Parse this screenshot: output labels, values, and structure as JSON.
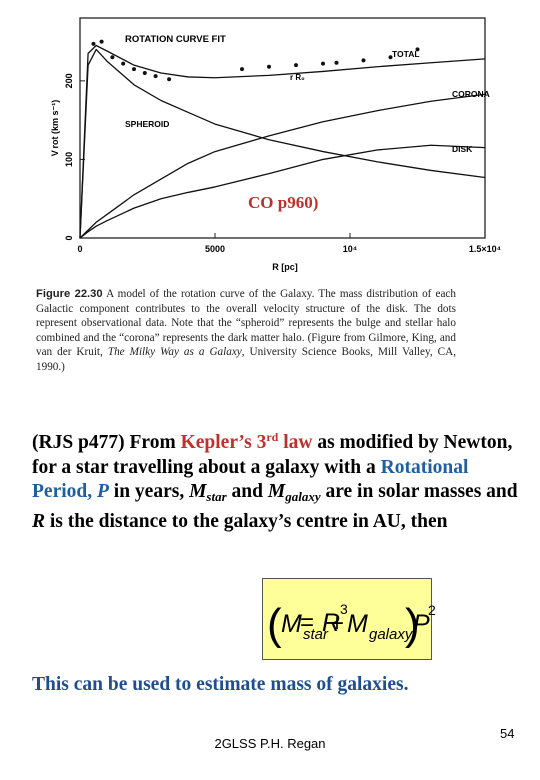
{
  "chart_data": {
    "type": "line",
    "title": "ROTATION CURVE FIT",
    "x_label": "R [pc]",
    "y_label": "V rot (km s⁻¹)",
    "annotation": "r R₀",
    "x": [
      0,
      300,
      600,
      1000,
      2000,
      3000,
      4000,
      5000,
      7000,
      9000,
      11000,
      13000,
      15000
    ],
    "series": [
      {
        "name": "TOTAL",
        "color": "#111",
        "values": [
          0,
          235,
          245,
          238,
          220,
          210,
          205,
          204,
          207,
          212,
          218,
          223,
          228
        ]
      },
      {
        "name": "CORONA",
        "color": "#111",
        "values": [
          0,
          10,
          20,
          30,
          55,
          75,
          95,
          110,
          130,
          148,
          162,
          174,
          183
        ]
      },
      {
        "name": "SPHEROID",
        "color": "#111",
        "values": [
          0,
          220,
          240,
          225,
          195,
          175,
          160,
          145,
          125,
          110,
          97,
          86,
          77
        ]
      },
      {
        "name": "DISK",
        "color": "#111",
        "values": [
          0,
          8,
          15,
          22,
          38,
          50,
          58,
          65,
          82,
          100,
          112,
          118,
          115
        ]
      }
    ],
    "points": {
      "x": [
        500,
        800,
        1200,
        1600,
        2000,
        2400,
        2800,
        3300,
        6000,
        7000,
        8000,
        9000,
        9500,
        10500,
        11500,
        12500
      ],
      "values": [
        247,
        250,
        230,
        222,
        215,
        210,
        206,
        202,
        215,
        218,
        220,
        222,
        223,
        226,
        230,
        240
      ]
    },
    "xlim": [
      0,
      15000
    ],
    "ylim": [
      0,
      280
    ],
    "xticks": [
      0,
      5000,
      {
        "value": 10000,
        "label": "10⁴"
      },
      {
        "value": 15000,
        "label": "1.5×10⁴"
      }
    ],
    "yticks": [
      0,
      100,
      200
    ]
  },
  "overlay": "CO p960)",
  "caption": [
    "Figure 22.30",
    " A model of the rotation curve of the Galaxy. The mass distribution of each Galactic component contributes to the overall velocity structure of the disk. The dots represent observational data. Note that the “spheroid” represents the bulge and stellar halo combined and the “corona” represents the dark matter halo. (Figure from Gilmore, King, and van der Kruit, ",
    "The Milky Way as a Galaxy",
    ", University Science Books, Mill Valley, CA, 1990.)"
  ],
  "body": [
    "(RJS p477) From ",
    "Kepler’s 3",
    "rd",
    " law",
    " as modified by Newton, for a star travelling about a galaxy with a ",
    "Rotational Period, ",
    "P",
    " in years, ",
    "M",
    "star",
    " and ",
    "M",
    "galaxy",
    " are in solar masses and ",
    "R",
    " is the distance to the galaxy’s centre in AU, then"
  ],
  "formula": [
    "(",
    "M",
    "star",
    "+",
    "M",
    "galaxy",
    ")",
    "P",
    "2",
    "=",
    "R",
    "3"
  ],
  "conclusion": "This can be used to estimate mass of galaxies.",
  "footer": "2GLSS P.H. Regan",
  "page_number": "54"
}
